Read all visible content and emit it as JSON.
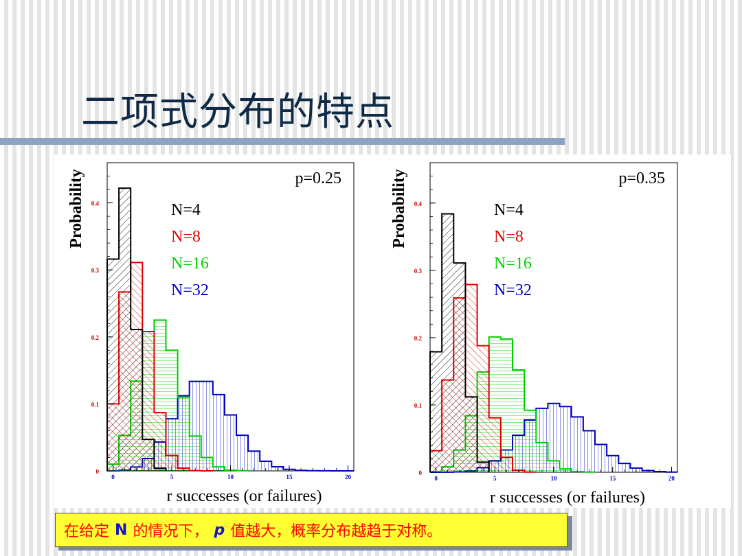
{
  "title": "二项式分布的特点",
  "caption": {
    "part1": "在给定",
    "var_n": "N",
    "part2": "的情况下，",
    "var_p": "p",
    "part3": "值越大，概率分布越趋于对称。"
  },
  "colors": {
    "N=4": "#000000",
    "N=8": "#e00000",
    "N=16": "#00d000",
    "N=32": "#0000c0"
  },
  "chart_data": [
    {
      "type": "bar",
      "subtype": "step-histogram",
      "annotation": "p=0.25",
      "xlabel": "r successes (or failures)",
      "ylabel": "Probability",
      "xlim": [
        -0.5,
        20.5
      ],
      "ylim": [
        0,
        0.46
      ],
      "xticks": [
        0,
        5,
        10,
        15,
        20
      ],
      "yticks": [
        0,
        0.1,
        0.2,
        0.3,
        0.4
      ],
      "series": [
        {
          "name": "N=4",
          "values": [
            0.316,
            0.422,
            0.211,
            0.047,
            0.004
          ]
        },
        {
          "name": "N=8",
          "values": [
            0.1,
            0.267,
            0.311,
            0.208,
            0.087,
            0.023,
            0.004,
            0.0004,
            2e-05
          ]
        },
        {
          "name": "N=16",
          "values": [
            0.01,
            0.053,
            0.134,
            0.208,
            0.225,
            0.18,
            0.11,
            0.052,
            0.02,
            0.006,
            0.001,
            0.0003
          ]
        },
        {
          "name": "N=32",
          "values": [
            0.0001,
            0.0011,
            0.0057,
            0.0185,
            0.0432,
            0.0777,
            0.1122,
            0.1336,
            0.1336,
            0.1138,
            0.0835,
            0.0532,
            0.0295,
            0.0144,
            0.0062,
            0.0023,
            0.0008,
            0.0002,
            0.0001,
            0.0,
            0.0
          ]
        }
      ]
    },
    {
      "type": "bar",
      "subtype": "step-histogram",
      "annotation": "p=0.35",
      "xlabel": "r successes (or failures)",
      "ylabel": "Probability",
      "xlim": [
        -0.5,
        20.5
      ],
      "ylim": [
        0,
        0.46
      ],
      "xticks": [
        0,
        5,
        10,
        15,
        20
      ],
      "yticks": [
        0,
        0.1,
        0.2,
        0.3,
        0.4
      ],
      "series": [
        {
          "name": "N=4",
          "values": [
            0.179,
            0.384,
            0.311,
            0.112,
            0.015
          ]
        },
        {
          "name": "N=8",
          "values": [
            0.032,
            0.137,
            0.259,
            0.279,
            0.188,
            0.081,
            0.022,
            0.003,
            0.0002
          ]
        },
        {
          "name": "N=16",
          "values": [
            0.001,
            0.008,
            0.033,
            0.084,
            0.149,
            0.201,
            0.198,
            0.152,
            0.092,
            0.044,
            0.017,
            0.005,
            0.001,
            0.0002
          ]
        },
        {
          "name": "N=32",
          "values": [
            0.0,
            0.0001,
            0.0005,
            0.0021,
            0.0068,
            0.0168,
            0.0331,
            0.055,
            0.0777,
            0.095,
            0.1023,
            0.0976,
            0.0822,
            0.0617,
            0.0413,
            0.0247,
            0.0131,
            0.0062,
            0.0026,
            0.001,
            0.0003
          ]
        }
      ]
    }
  ]
}
